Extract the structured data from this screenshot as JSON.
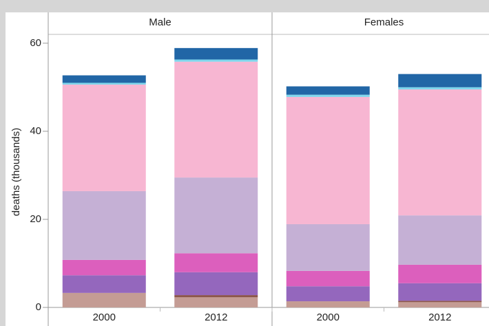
{
  "chart_data": [
    {
      "type": "bar",
      "stacked": true,
      "title": "Male",
      "y_label": "deaths (thousands)",
      "categories": [
        "2000",
        "2012"
      ],
      "ylim": [
        0,
        62
      ],
      "yticks": [
        0,
        20,
        40,
        60
      ],
      "series": [
        {
          "color": "#c49c94",
          "values": [
            3.3,
            2.3
          ]
        },
        {
          "color": "#8c564b",
          "values": [
            0,
            0.5
          ]
        },
        {
          "color": "#9467bd",
          "values": [
            4.0,
            5.2
          ]
        },
        {
          "color": "#dc5fbd",
          "values": [
            3.5,
            4.3
          ]
        },
        {
          "color": "#c5b0d5",
          "values": [
            15.6,
            17.2
          ]
        },
        {
          "color": "#f7b6d2",
          "values": [
            24.2,
            26.3
          ]
        },
        {
          "color": "#7fd6ec",
          "values": [
            0.4,
            0.5
          ]
        },
        {
          "color": "#2166a6",
          "values": [
            1.7,
            2.6
          ]
        }
      ]
    },
    {
      "type": "bar",
      "stacked": true,
      "title": "Females",
      "categories": [
        "2000",
        "2012"
      ],
      "series": [
        {
          "color": "#c49c94",
          "values": [
            1.4,
            1.2
          ]
        },
        {
          "color": "#8c564b",
          "values": [
            0,
            0.3
          ]
        },
        {
          "color": "#9467bd",
          "values": [
            3.4,
            4.0
          ]
        },
        {
          "color": "#dc5fbd",
          "values": [
            3.5,
            4.2
          ]
        },
        {
          "color": "#c5b0d5",
          "values": [
            10.6,
            11.2
          ]
        },
        {
          "color": "#f7b6d2",
          "values": [
            28.9,
            28.6
          ]
        },
        {
          "color": "#7fd6ec",
          "values": [
            0.5,
            0.5
          ]
        },
        {
          "color": "#2166a6",
          "values": [
            1.9,
            3.0
          ]
        }
      ]
    }
  ]
}
